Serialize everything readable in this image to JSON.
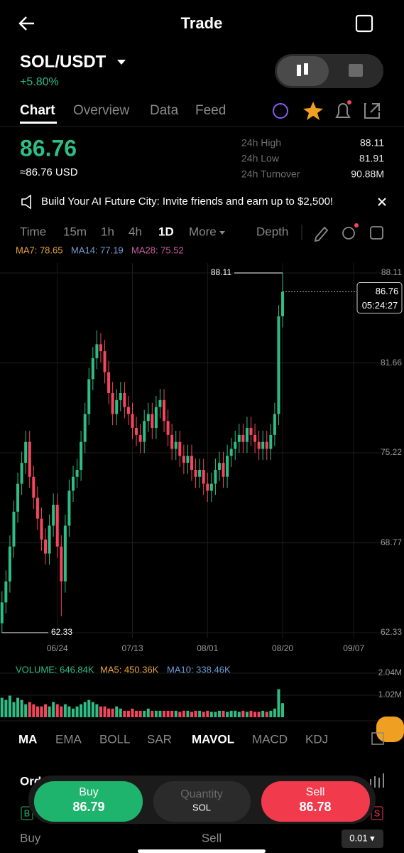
{
  "header": {
    "title": "Trade"
  },
  "pair": {
    "symbol": "SOL/USDT",
    "change": "+5.80%"
  },
  "tabs": [
    "Chart",
    "Overview",
    "Data",
    "Feed"
  ],
  "price": {
    "last": "86.76",
    "usd": "≈86.76 USD"
  },
  "stats": [
    {
      "label": "24h High",
      "value": "88.11"
    },
    {
      "label": "24h Low",
      "value": "81.91"
    },
    {
      "label": "24h Turnover",
      "value": "90.88M"
    }
  ],
  "banner": "Build Your AI Future City: Invite friends and earn up to $2,500!",
  "intervals": [
    "Time",
    "15m",
    "1h",
    "4h",
    "1D",
    "More"
  ],
  "depth": "Depth",
  "ma_legend": [
    "MA7: 78.65",
    "MA14: 77.19",
    "MA28: 75.52"
  ],
  "chart_data": [
    {
      "type": "candlestick",
      "open": [
        63,
        64.5,
        66,
        68.5,
        71,
        73,
        74.5,
        76,
        73.5,
        72,
        70.5,
        69,
        68,
        70,
        71.5,
        68.5,
        66,
        70,
        72.5,
        73.5,
        74,
        76,
        78,
        80.5,
        82,
        83,
        82.5,
        81,
        79.5,
        78,
        79,
        79.5,
        78.5,
        78,
        77,
        76.5,
        76,
        77.5,
        78,
        77,
        78.5,
        79,
        77.5,
        76.5,
        75.5,
        76,
        75,
        74.5,
        75,
        74,
        73.5,
        74,
        73,
        72.5,
        73,
        74,
        74.5,
        73.5,
        75,
        75.5,
        76,
        76.5,
        76,
        77,
        76.5,
        76,
        75.5,
        76,
        75.5,
        76.5,
        78,
        85
      ],
      "high": [
        65.3,
        66.8,
        69.3,
        71.8,
        73.8,
        75.3,
        76.8,
        76.8,
        74.3,
        72.8,
        71.3,
        69.8,
        70.8,
        72.3,
        72.3,
        69.3,
        70.8,
        73.3,
        74.3,
        74.8,
        76.8,
        78.8,
        81.3,
        82.8,
        84,
        83.8,
        83.3,
        81.8,
        80.3,
        79.8,
        80.3,
        80.3,
        79.3,
        78.8,
        77.8,
        77.3,
        78.3,
        78.8,
        78.8,
        79.3,
        79.8,
        79.8,
        78.3,
        77.3,
        76.8,
        76.8,
        75.8,
        75.8,
        75.8,
        74.8,
        74.8,
        74.8,
        73.8,
        73.8,
        74.8,
        75.3,
        75.3,
        75.8,
        76.3,
        76.8,
        77.3,
        77.3,
        77.8,
        77.8,
        77.3,
        76.8,
        76.8,
        76.8,
        77.3,
        78.8,
        85.8,
        88.11
      ],
      "low": [
        62.33,
        63.7,
        65.2,
        67.7,
        70.2,
        72.2,
        73.7,
        72.7,
        71.2,
        69.7,
        68.2,
        67.2,
        67.2,
        69.2,
        67.7,
        63.5,
        65.2,
        69.2,
        71.7,
        72.7,
        73.2,
        75.2,
        77.2,
        79.7,
        81.2,
        81.7,
        80.2,
        78.7,
        77.2,
        77.2,
        78.2,
        77.7,
        77.2,
        76.2,
        75.7,
        75.2,
        75.2,
        76.7,
        76.2,
        76.2,
        77.7,
        76.7,
        75.7,
        74.7,
        74.7,
        74.2,
        73.7,
        73.7,
        73.2,
        72.7,
        72.7,
        72.2,
        71.7,
        71.7,
        72.2,
        73.2,
        72.7,
        72.7,
        74.2,
        74.7,
        75.2,
        75.2,
        75.2,
        75.7,
        75.2,
        74.7,
        74.7,
        74.7,
        74.7,
        75.7,
        77.2,
        84.2
      ],
      "close": [
        64.5,
        66,
        68.5,
        71,
        73,
        74.5,
        76,
        73.5,
        72,
        70.5,
        69,
        68,
        70,
        71.5,
        68.5,
        66,
        70,
        72.5,
        73.5,
        74,
        76,
        78,
        80.5,
        82,
        83,
        82.5,
        81,
        79.5,
        78,
        79,
        79.5,
        78.5,
        78,
        77,
        76.5,
        76,
        77.5,
        78,
        77,
        78.5,
        79,
        77.5,
        76.5,
        75.5,
        76,
        75,
        74.5,
        75,
        74,
        73.5,
        74,
        73,
        72.5,
        73,
        74,
        74.5,
        73.5,
        75,
        75.5,
        76,
        76.5,
        76,
        77,
        76.5,
        76,
        75.5,
        76,
        75.5,
        76.5,
        78,
        85,
        86.76
      ],
      "ylim": [
        62.33,
        88.11
      ],
      "yticks": [
        88.11,
        81.66,
        75.22,
        68.77,
        62.33
      ],
      "xlim": [
        -0.5,
        96.5
      ],
      "xticks": [
        {
          "value": 14,
          "label": "06/24"
        },
        {
          "value": 33,
          "label": "07/13"
        },
        {
          "value": 52,
          "label": "08/01"
        },
        {
          "value": 71,
          "label": "08/20"
        },
        {
          "value": 89,
          "label": "09/07"
        }
      ],
      "up_color": "#2ebd85",
      "down_color": "#f6465d",
      "grid": true,
      "max_label": "88.11",
      "min_label": "62.33",
      "last_label": "86.76",
      "countdown": "05:24:27"
    },
    {
      "type": "bar",
      "legend": [
        "VOLUME: 646.84K",
        "MA5: 450.36K",
        "MA10: 338.46K"
      ],
      "values": [
        0.9,
        0.8,
        1.0,
        0.7,
        0.9,
        0.8,
        0.6,
        0.7,
        0.6,
        0.5,
        0.5,
        0.6,
        0.5,
        0.7,
        0.6,
        0.5,
        0.6,
        0.5,
        0.4,
        0.5,
        0.6,
        0.7,
        0.8,
        0.7,
        0.6,
        0.5,
        0.5,
        0.4,
        0.4,
        0.5,
        0.4,
        0.3,
        0.3,
        0.4,
        0.3,
        0.3,
        0.3,
        0.4,
        0.3,
        0.3,
        0.3,
        0.3,
        0.3,
        0.3,
        0.3,
        0.25,
        0.3,
        0.3,
        0.25,
        0.3,
        0.3,
        0.25,
        0.3,
        0.25,
        0.25,
        0.3,
        0.3,
        0.25,
        0.3,
        0.3,
        0.25,
        0.3,
        0.25,
        0.3,
        0.25,
        0.25,
        0.3,
        0.25,
        0.3,
        0.4,
        1.3,
        0.65
      ],
      "ylim": [
        0,
        2.04
      ],
      "yticks": [
        {
          "value": 2.04,
          "label": "2.04M"
        },
        {
          "value": 1.02,
          "label": "1.02M"
        }
      ]
    }
  ],
  "indicators": [
    "MA",
    "EMA",
    "BOLL",
    "SAR",
    "MAVOL",
    "MACD",
    "KDJ"
  ],
  "order": {
    "tab": "Ord",
    "buy": {
      "label": "Buy",
      "price": "86.79"
    },
    "quantity": {
      "label": "Quantity",
      "unit": "SOL"
    },
    "sell": {
      "label": "Sell",
      "price": "86.78"
    },
    "buy_badge": "B",
    "sell_badge": "S",
    "buy_side": "Buy",
    "sell_side": "Sell",
    "step": "0.01 ▾"
  }
}
